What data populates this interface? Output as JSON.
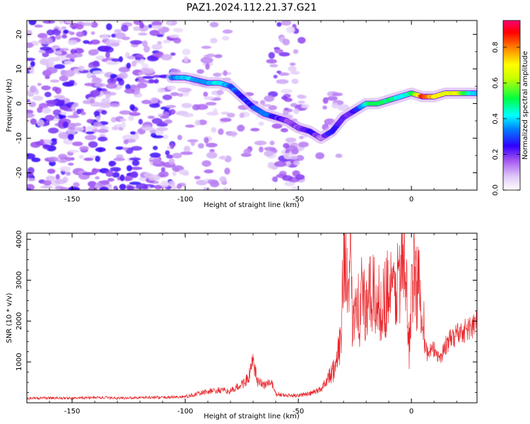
{
  "figure_title": "PAZ1.2024.112.21.37.G21",
  "chart_data": [
    {
      "type": "heatmap",
      "title": "",
      "xlabel": "Height of straight line (km)",
      "ylabel": "Frequency (Hz)",
      "xlim": [
        -170,
        29
      ],
      "ylim": [
        -25,
        24
      ],
      "xticks": [
        -150,
        -100,
        -50,
        0
      ],
      "yticks": [
        -20,
        -10,
        0,
        10,
        20
      ],
      "colorbar": {
        "label": "Normalized spectral amplitude",
        "range": [
          0.0,
          0.95
        ],
        "ticks": [
          "0.0",
          "0.2",
          "0.4",
          "0.6",
          "0.8"
        ],
        "colors": [
          "#ffffff",
          "#b565e8",
          "#6a00d8",
          "#0000ff",
          "#00ffff",
          "#00ff00",
          "#ffff00",
          "#ff8000",
          "#ff0000",
          "#ff0060"
        ]
      },
      "ridge": {
        "x": [
          -106,
          -100,
          -90,
          -85,
          -80,
          -75,
          -70,
          -65,
          -60,
          -55,
          -50,
          -45,
          -40,
          -35,
          -30,
          -25,
          -20,
          -15,
          -10,
          -5,
          0,
          5,
          10,
          15,
          20,
          25,
          29
        ],
        "y": [
          7.5,
          7.5,
          6,
          6,
          5,
          2,
          -1,
          -3,
          -4,
          -5,
          -7,
          -8,
          -10,
          -8,
          -4,
          -2,
          0,
          0,
          1,
          2,
          3,
          2,
          2,
          3,
          3,
          3,
          3
        ],
        "amplitude": [
          0.35,
          0.4,
          0.4,
          0.45,
          0.35,
          0.3,
          0.3,
          0.35,
          0.25,
          0.2,
          0.2,
          0.25,
          0.15,
          0.3,
          0.2,
          0.25,
          0.45,
          0.55,
          0.5,
          0.45,
          0.5,
          0.9,
          0.75,
          0.7,
          0.7,
          0.5,
          0.4
        ]
      }
    },
    {
      "type": "line",
      "title": "",
      "xlabel": "Height of straight line (km)",
      "ylabel": "SNR (10 * v/v)",
      "xlim": [
        -170,
        29
      ],
      "ylim": [
        0,
        4150
      ],
      "xticks": [
        -150,
        -100,
        -50,
        0
      ],
      "yticks": [
        1000,
        2000,
        3000,
        4000
      ],
      "color": "#e8262b",
      "series": [
        {
          "name": "",
          "x": [
            -170,
            -160,
            -150,
            -140,
            -130,
            -120,
            -110,
            -100,
            -95,
            -90,
            -85,
            -80,
            -75,
            -72,
            -70,
            -68,
            -65,
            -62,
            -60,
            -55,
            -50,
            -45,
            -40,
            -36,
            -33,
            -31,
            -30,
            -29,
            -28,
            -27,
            -26,
            -25,
            -24,
            -23,
            -22,
            -20,
            -18,
            -15,
            -12,
            -10,
            -8,
            -5,
            -3,
            -2,
            -1,
            0,
            1,
            3,
            5,
            6,
            7,
            10,
            13,
            15,
            20,
            25,
            29
          ],
          "y": [
            110,
            120,
            110,
            130,
            115,
            130,
            130,
            150,
            210,
            280,
            300,
            280,
            450,
            600,
            1000,
            500,
            450,
            500,
            220,
            170,
            190,
            220,
            330,
            700,
            900,
            1800,
            4100,
            3600,
            2400,
            3200,
            2000,
            2500,
            3100,
            1800,
            2800,
            2100,
            2700,
            2400,
            2500,
            2900,
            2600,
            3200,
            3300,
            2500,
            1300,
            2900,
            3100,
            2800,
            2600,
            1500,
            1200,
            1300,
            1100,
            1400,
            1700,
            1800,
            1950
          ]
        }
      ]
    }
  ]
}
